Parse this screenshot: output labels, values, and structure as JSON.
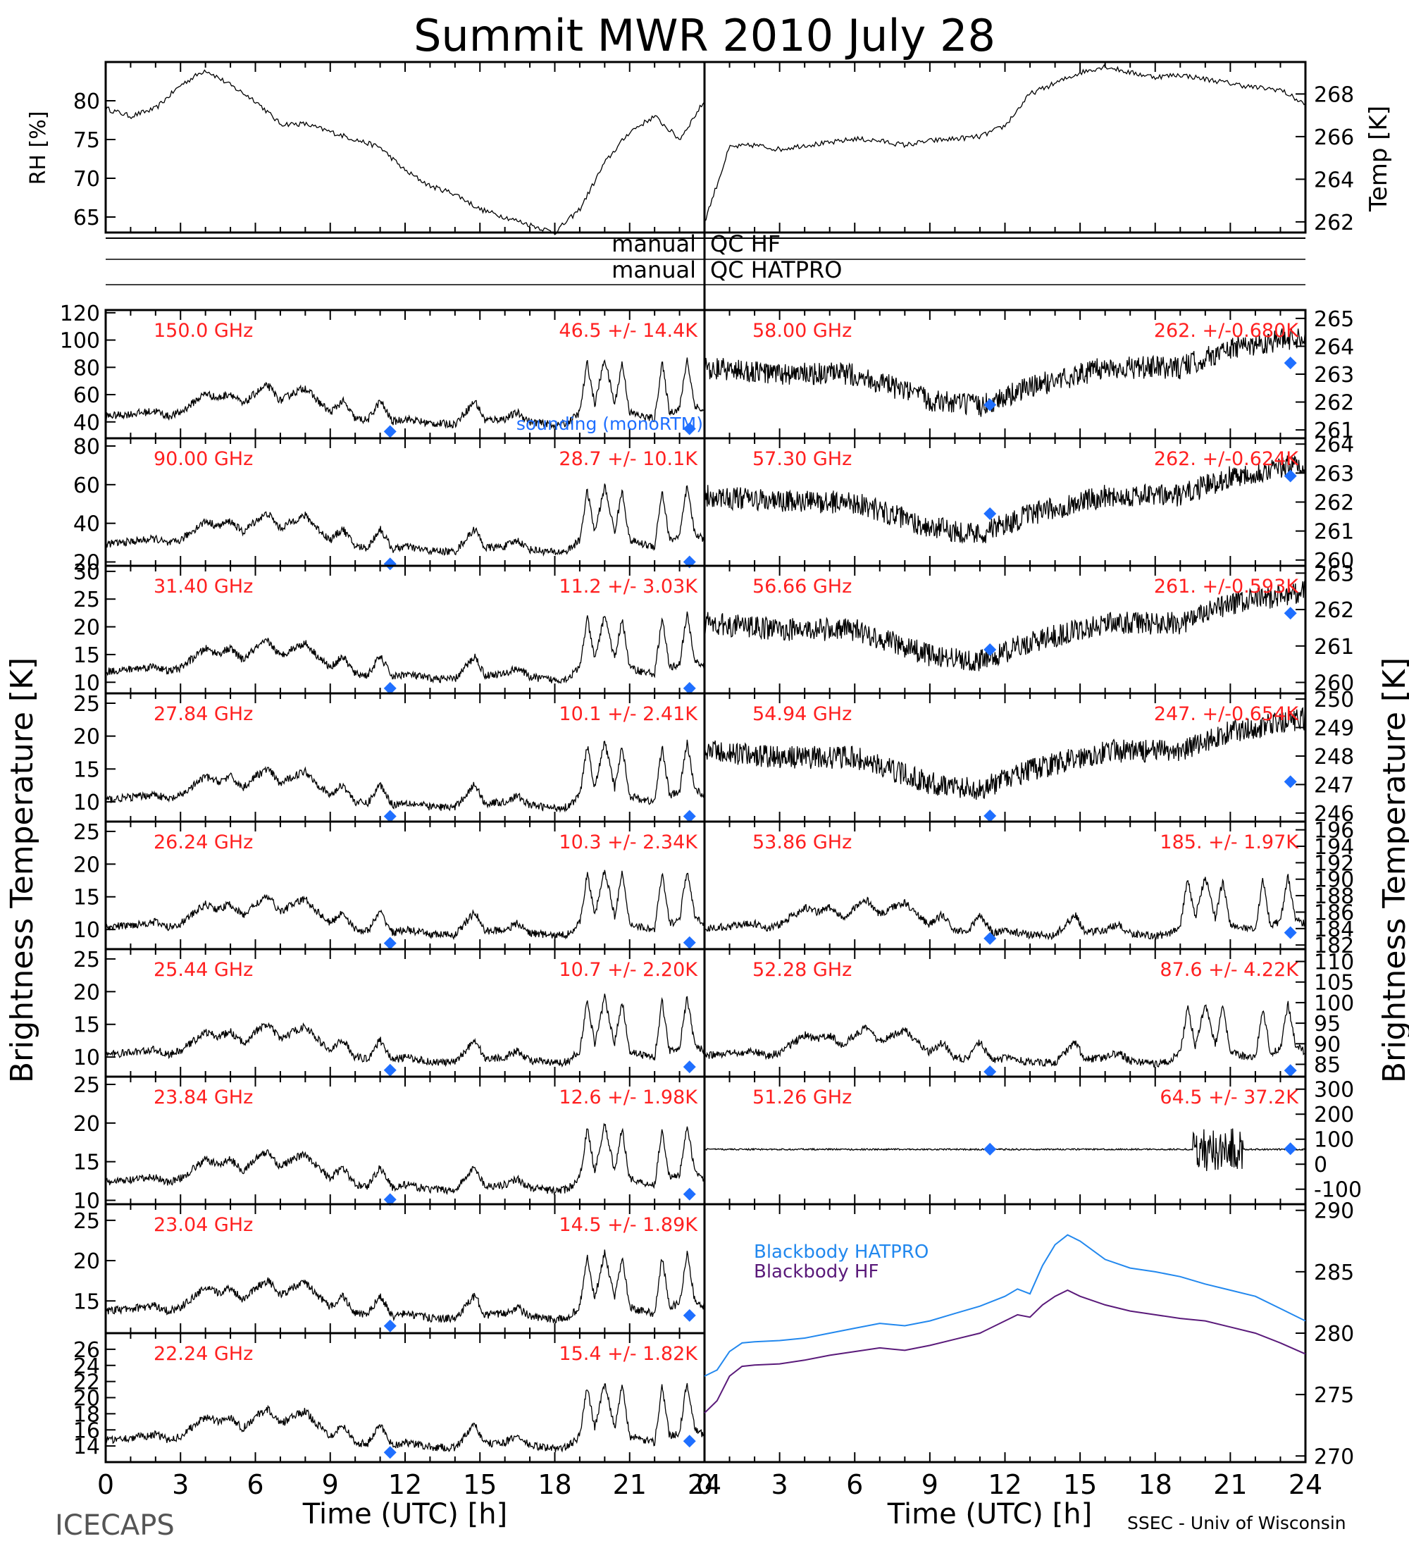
{
  "title": "Summit MWR 2010 July 28",
  "footer_left": "ICECAPS",
  "footer_right": "SSEC - Univ of Wisconsin",
  "x_axis": {
    "label": "Time (UTC) [h]",
    "ticks": [
      0,
      3,
      6,
      9,
      12,
      15,
      18,
      21,
      24
    ],
    "range": [
      0,
      24
    ]
  },
  "left_ylabel": "Brightness Temperature [K]",
  "right_ylabel": "Brightness Temperature [K]",
  "qc": {
    "left": "manual",
    "right1": "QC HF",
    "right2": "QC HATPRO"
  },
  "colors": {
    "channel_label": "#ff2020",
    "sounding_marker": "#1f6fff",
    "bb_hatpro": "#2288ee",
    "bb_hf": "#5a1a7a",
    "trace": "#000000"
  },
  "chart_data": [
    {
      "id": "rh",
      "type": "line",
      "ylabel": "RH [%]",
      "ylim": [
        63,
        85
      ],
      "yticks": [
        65,
        70,
        75,
        80
      ],
      "x": [
        0,
        1,
        2,
        3,
        4,
        5,
        6,
        7,
        8,
        9,
        10,
        11,
        12,
        13,
        14,
        15,
        16,
        17,
        18,
        19,
        20,
        21,
        22,
        23,
        24
      ],
      "values": [
        79,
        78,
        79,
        82,
        84,
        82,
        80,
        77,
        77,
        76,
        75,
        74,
        71,
        69,
        68,
        66,
        65,
        64,
        63,
        66,
        72,
        76,
        78,
        75,
        80
      ]
    },
    {
      "id": "temp",
      "type": "line",
      "ylabel": "Temp [K]",
      "ylim": [
        261.5,
        269.5
      ],
      "yticks": [
        262,
        264,
        266,
        268
      ],
      "x": [
        0,
        1,
        2,
        3,
        4,
        5,
        6,
        7,
        8,
        9,
        10,
        11,
        12,
        13,
        14,
        15,
        16,
        17,
        18,
        19,
        20,
        21,
        22,
        23,
        24
      ],
      "values": [
        262,
        265.5,
        265.6,
        265.4,
        265.6,
        265.7,
        265.9,
        265.8,
        265.6,
        265.8,
        265.9,
        266,
        266.5,
        268,
        268.5,
        269,
        269.3,
        269,
        268.8,
        268.9,
        268.7,
        268.5,
        268.3,
        268.2,
        267.5
      ]
    },
    {
      "id": "ch150",
      "type": "line",
      "freq": "150.0 GHz",
      "stats": "46.5 +/- 14.4K",
      "ylim": [
        28,
        122
      ],
      "yticks": [
        40,
        60,
        80,
        100,
        120
      ],
      "sounding": [
        [
          11.4,
          33
        ],
        [
          23.4,
          35
        ]
      ],
      "note": "sounding (monoRTM)"
    },
    {
      "id": "ch90",
      "type": "line",
      "freq": "90.00 GHz",
      "stats": "28.7 +/- 10.1K",
      "ylim": [
        18,
        84
      ],
      "yticks": [
        20,
        40,
        60,
        80
      ],
      "sounding": [
        [
          11.4,
          19
        ],
        [
          23.4,
          20
        ]
      ]
    },
    {
      "id": "ch31",
      "type": "line",
      "freq": "31.40 GHz",
      "stats": "11.2 +/- 3.03K",
      "ylim": [
        8,
        31
      ],
      "yticks": [
        10,
        15,
        20,
        25,
        30
      ],
      "sounding": [
        [
          11.4,
          8.9
        ],
        [
          23.4,
          8.9
        ]
      ]
    },
    {
      "id": "ch2784",
      "type": "line",
      "freq": "27.84 GHz",
      "stats": "10.1 +/- 2.41K",
      "ylim": [
        7,
        26.5
      ],
      "yticks": [
        10,
        15,
        20,
        25
      ],
      "sounding": [
        [
          11.4,
          7.8
        ],
        [
          23.4,
          7.8
        ]
      ]
    },
    {
      "id": "ch2624",
      "type": "line",
      "freq": "26.24 GHz",
      "stats": "10.3 +/- 2.34K",
      "ylim": [
        7,
        26.5
      ],
      "yticks": [
        10,
        15,
        20,
        25
      ],
      "sounding": [
        [
          11.4,
          7.9
        ],
        [
          23.4,
          8
        ]
      ]
    },
    {
      "id": "ch2544",
      "type": "line",
      "freq": "25.44 GHz",
      "stats": "10.7 +/- 2.20K",
      "ylim": [
        7,
        26.5
      ],
      "yticks": [
        10,
        15,
        20,
        25
      ],
      "sounding": [
        [
          11.4,
          8
        ],
        [
          23.4,
          8.5
        ]
      ]
    },
    {
      "id": "ch2384",
      "type": "line",
      "freq": "23.84 GHz",
      "stats": "12.6 +/- 1.98K",
      "ylim": [
        9.5,
        26
      ],
      "yticks": [
        10,
        15,
        20,
        25
      ],
      "sounding": [
        [
          11.4,
          10.1
        ],
        [
          23.4,
          10.8
        ]
      ]
    },
    {
      "id": "ch2304",
      "type": "line",
      "freq": "23.04 GHz",
      "stats": "14.5 +/- 1.89K",
      "ylim": [
        11,
        27
      ],
      "yticks": [
        15,
        20,
        25
      ],
      "sounding": [
        [
          11.4,
          11.9
        ],
        [
          23.4,
          13.2
        ]
      ]
    },
    {
      "id": "ch2224",
      "type": "line",
      "freq": "22.24 GHz",
      "stats": "15.4 +/- 1.82K",
      "ylim": [
        12,
        28
      ],
      "yticks": [
        14,
        16,
        18,
        20,
        22,
        24,
        26
      ],
      "sounding": [
        [
          11.4,
          13.2
        ],
        [
          23.4,
          14.6
        ]
      ]
    },
    {
      "id": "ch5800",
      "type": "line",
      "freq": "58.00 GHz",
      "stats": "262. +/-0.680K",
      "ylim": [
        260.7,
        265.3
      ],
      "yticks": [
        261,
        262,
        263,
        264,
        265
      ],
      "sounding": [
        [
          11.4,
          261.9
        ],
        [
          23.4,
          263.4
        ]
      ]
    },
    {
      "id": "ch5730",
      "type": "line",
      "freq": "57.30 GHz",
      "stats": "262. +/-0.624K",
      "ylim": [
        259.8,
        264.2
      ],
      "yticks": [
        260,
        261,
        262,
        263,
        264
      ],
      "sounding": [
        [
          11.4,
          261.6
        ],
        [
          23.4,
          262.9
        ]
      ]
    },
    {
      "id": "ch5666",
      "type": "line",
      "freq": "56.66 GHz",
      "stats": "261. +/-0.593K",
      "ylim": [
        259.7,
        263.2
      ],
      "yticks": [
        260,
        261,
        262,
        263
      ],
      "sounding": [
        [
          11.4,
          260.9
        ],
        [
          23.4,
          261.9
        ]
      ]
    },
    {
      "id": "ch5494",
      "type": "line",
      "freq": "54.94 GHz",
      "stats": "247. +/-0.654K",
      "ylim": [
        245.7,
        250.2
      ],
      "yticks": [
        246,
        247,
        248,
        249,
        250
      ],
      "sounding": [
        [
          11.4,
          245.9
        ],
        [
          23.4,
          247.1
        ]
      ]
    },
    {
      "id": "ch5386",
      "type": "line",
      "freq": "53.86 GHz",
      "stats": "185. +/- 1.97K",
      "ylim": [
        181.5,
        197
      ],
      "yticks": [
        182,
        184,
        186,
        188,
        190,
        192,
        194,
        196
      ],
      "sounding": [
        [
          11.4,
          182.8
        ],
        [
          23.4,
          183.5
        ]
      ]
    },
    {
      "id": "ch5228",
      "type": "line",
      "freq": "52.28 GHz",
      "stats": "87.6 +/- 4.22K",
      "ylim": [
        82,
        113
      ],
      "yticks": [
        85,
        90,
        95,
        100,
        105,
        110
      ],
      "sounding": [
        [
          11.4,
          83.2
        ],
        [
          23.4,
          83.5
        ]
      ]
    },
    {
      "id": "ch5126",
      "type": "line",
      "freq": "51.26 GHz",
      "stats": "64.5 +/- 37.2K",
      "ylim": [
        -160,
        350
      ],
      "yticks": [
        -100,
        0,
        100,
        200,
        300
      ],
      "sounding": [
        [
          11.4,
          60
        ],
        [
          23.4,
          62
        ]
      ]
    },
    {
      "id": "blackbody",
      "type": "line",
      "ylabel": "Temp [K]",
      "ylim": [
        269.5,
        290.5
      ],
      "yticks": [
        270,
        275,
        280,
        285,
        290
      ],
      "x": [
        0,
        0.5,
        1,
        1.5,
        2,
        3,
        4,
        5,
        6,
        7,
        8,
        9,
        10,
        11,
        12,
        12.5,
        13,
        13.5,
        14,
        14.5,
        15,
        16,
        17,
        18,
        19,
        20,
        21,
        22,
        23,
        24
      ],
      "series": [
        {
          "name": "Blackbody HATPRO",
          "values": [
            276.5,
            277,
            278.5,
            279.2,
            279.3,
            279.4,
            279.6,
            280,
            280.4,
            280.8,
            280.6,
            281,
            281.6,
            282.2,
            283,
            283.6,
            283.2,
            285.5,
            287.2,
            288,
            287.5,
            286,
            285.3,
            285,
            284.6,
            284,
            283.5,
            283,
            282,
            281
          ]
        },
        {
          "name": "Blackbody HF",
          "values": [
            273.5,
            274.5,
            276.5,
            277.3,
            277.4,
            277.5,
            277.8,
            278.2,
            278.5,
            278.8,
            278.6,
            279,
            279.5,
            280,
            281,
            281.5,
            281.3,
            282.3,
            283,
            283.5,
            283,
            282.3,
            281.8,
            281.5,
            281.2,
            281,
            280.5,
            280,
            279.2,
            278.3
          ]
        }
      ]
    }
  ]
}
